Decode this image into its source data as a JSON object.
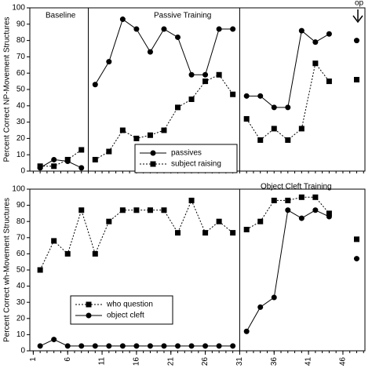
{
  "chart_data": [
    {
      "type": "line",
      "ylabel": "Percent Correct NP-Movement Structures",
      "annotations": [
        "Baseline",
        "Passive Training",
        "op"
      ],
      "xlim": [
        0.5,
        49.2
      ],
      "ylim": [
        0,
        100
      ],
      "yticks": [
        0,
        10,
        20,
        30,
        40,
        50,
        60,
        70,
        80,
        90,
        100
      ],
      "phase_changes": [
        9,
        31
      ],
      "follow_up_after": 46,
      "legend": "lower center",
      "x": [
        2,
        4,
        6,
        8,
        10,
        12,
        14,
        16,
        18,
        20,
        22,
        24,
        26,
        28,
        30,
        32,
        34,
        36,
        38,
        40,
        42,
        44,
        48
      ],
      "series": [
        {
          "name": "passives",
          "color": "#000000",
          "marker": "circle",
          "linestyle": "solid",
          "values": [
            2,
            7,
            6,
            2,
            53,
            67,
            93,
            87,
            73,
            87,
            82,
            59,
            59,
            87,
            87,
            46,
            46,
            39,
            39,
            86,
            79,
            84,
            80
          ]
        },
        {
          "name": "subject raising",
          "color": "#000000",
          "marker": "square",
          "linestyle": "dashed",
          "values": [
            3,
            3,
            7,
            13,
            7,
            12,
            25,
            20,
            22,
            25,
            39,
            44,
            55,
            59,
            47,
            32,
            19,
            26,
            19,
            26,
            66,
            55,
            56
          ]
        }
      ]
    },
    {
      "type": "line",
      "ylabel": "Percent Correct wh-Movement Structures",
      "annotations": [
        "Object Cleft Training"
      ],
      "xlim": [
        0.5,
        49.2
      ],
      "ylim": [
        0,
        100
      ],
      "yticks": [
        0,
        10,
        20,
        30,
        40,
        50,
        60,
        70,
        80,
        90,
        100
      ],
      "xticks": [
        1,
        6,
        11,
        16,
        21,
        26,
        31,
        36,
        41,
        46
      ],
      "phase_changes": [
        31
      ],
      "follow_up_after": 46,
      "legend": "lower left",
      "x": [
        2,
        4,
        6,
        8,
        10,
        12,
        14,
        16,
        18,
        20,
        22,
        24,
        26,
        28,
        30,
        32,
        34,
        36,
        38,
        40,
        42,
        44,
        48
      ],
      "series": [
        {
          "name": "who question",
          "color": "#000000",
          "marker": "square",
          "linestyle": "dashed",
          "values": [
            50,
            68,
            60,
            87,
            60,
            80,
            87,
            87,
            87,
            87,
            73,
            93,
            73,
            80,
            73,
            75,
            80,
            93,
            93,
            95,
            95,
            85,
            69
          ]
        },
        {
          "name": "object cleft",
          "color": "#000000",
          "marker": "circle",
          "linestyle": "solid",
          "values": [
            3,
            7,
            3,
            3,
            3,
            3,
            3,
            3,
            3,
            3,
            3,
            3,
            3,
            3,
            3,
            12,
            27,
            33,
            87,
            82,
            87,
            83,
            57
          ]
        }
      ]
    }
  ]
}
